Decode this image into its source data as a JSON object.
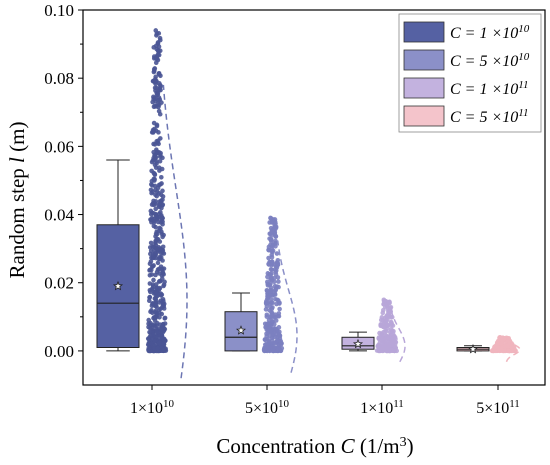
{
  "chart_data": {
    "type": "box",
    "xlabel": "Concentration C (1/m³)",
    "xlabel_parts": {
      "main": "Concentration ",
      "var": "C",
      "unit": " (1/m",
      "sup": "3",
      "close": ")"
    },
    "ylabel": "Random step l (m)",
    "ylabel_parts": {
      "main": "Random step ",
      "var": "l",
      "unit": " (m)"
    },
    "ylim": [
      -0.01,
      0.1
    ],
    "yticks": [
      "0.00",
      "0.02",
      "0.04",
      "0.06",
      "0.08",
      "0.10"
    ],
    "ytick_values": [
      0,
      0.02,
      0.04,
      0.06,
      0.08,
      0.1
    ],
    "categories": [
      {
        "base": "1×10",
        "exp": "10"
      },
      {
        "base": "5×10",
        "exp": "10"
      },
      {
        "base": "1×10",
        "exp": "11"
      },
      {
        "base": "5×10",
        "exp": "11"
      }
    ],
    "legend_placement": "top-right",
    "legend": [
      {
        "prefix": "C = ",
        "base": "1 ×10",
        "exp": "10"
      },
      {
        "prefix": "C = ",
        "base": "5 ×10",
        "exp": "10"
      },
      {
        "prefix": "C = ",
        "base": "1 ×10",
        "exp": "11"
      },
      {
        "prefix": "C = ",
        "base": "5 ×10",
        "exp": "11"
      }
    ],
    "series": [
      {
        "whisker_low": 0.0,
        "q1": 0.001,
        "median": 0.014,
        "q3": 0.037,
        "whisker_high": 0.056,
        "mean": 0.019,
        "max": 0.094,
        "color": "#4a5595",
        "fill": "#5561a3",
        "line_color": "#6c76b3"
      },
      {
        "whisker_low": 0.0,
        "q1": 0.0,
        "median": 0.004,
        "q3": 0.0115,
        "whisker_high": 0.017,
        "mean": 0.006,
        "max": 0.039,
        "color": "#7b80c0",
        "fill": "#8b90c8",
        "line_color": "#8b90c8"
      },
      {
        "whisker_low": 0.0,
        "q1": 0.0005,
        "median": 0.0015,
        "q3": 0.004,
        "whisker_high": 0.0055,
        "mean": 0.002,
        "max": 0.015,
        "color": "#b8a6d8",
        "fill": "#c3b2df",
        "line_color": "#b8a6d8"
      },
      {
        "whisker_low": 0.0,
        "q1": 0.0,
        "median": 0.0005,
        "q3": 0.001,
        "whisker_high": 0.0015,
        "mean": 0.0005,
        "max": 0.004,
        "color": "#f0b5be",
        "fill": "#f4c4cb",
        "line_color": "#f0b5be"
      }
    ]
  }
}
